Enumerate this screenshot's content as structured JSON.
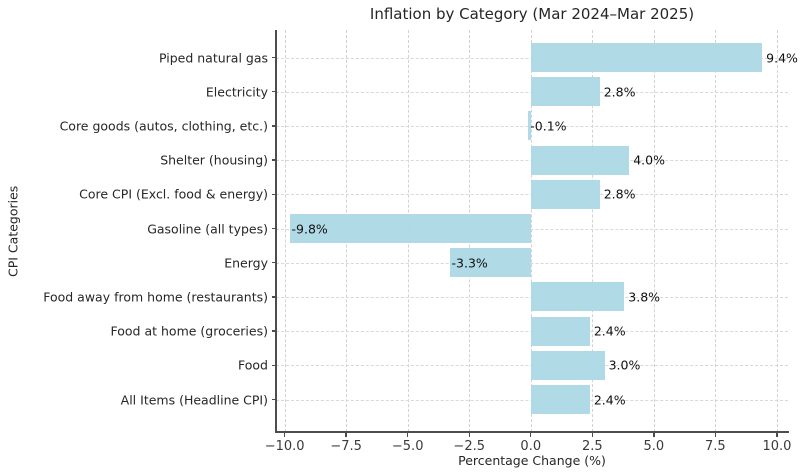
{
  "chart_data": {
    "type": "bar",
    "orientation": "horizontal",
    "title": "Inflation by Category (Mar 2024–Mar 2025)",
    "xlabel": "Percentage Change (%)",
    "ylabel": "CPI Categories",
    "categories": [
      "Piped natural gas",
      "Electricity",
      "Core goods (autos, clothing, etc.)",
      "Shelter (housing)",
      "Core CPI (Excl. food & energy)",
      "Gasoline (all types)",
      "Energy",
      "Food away from home (restaurants)",
      "Food at home (groceries)",
      "Food",
      "All Items (Headline CPI)"
    ],
    "values": [
      9.4,
      2.8,
      -0.1,
      4.0,
      2.8,
      -9.8,
      -3.3,
      3.8,
      2.4,
      3.0,
      2.4
    ],
    "value_labels": [
      "9.4%",
      "2.8%",
      "-0.1%",
      "4.0%",
      "2.8%",
      "-9.8%",
      "-3.3%",
      "3.8%",
      "2.4%",
      "3.0%",
      "2.4%"
    ],
    "xticks": [
      -10.0,
      -7.5,
      -5.0,
      -2.5,
      0.0,
      2.5,
      5.0,
      7.5,
      10.0
    ],
    "xtick_labels": [
      "−10.0",
      "−7.5",
      "−5.0",
      "−2.5",
      "0.0",
      "2.5",
      "5.0",
      "7.5",
      "10.0"
    ],
    "xlim": [
      -10.35,
      10.45
    ],
    "grid": true,
    "grid_style": "dashed",
    "legend": null,
    "colors": {
      "bar": "#add8e6",
      "grid": "#d2d2d2",
      "spine": "#4d4d4d",
      "title_text": "#262626",
      "tick_text": "#3a3a3a",
      "value_text": "#111111",
      "background": "#ffffff"
    }
  }
}
